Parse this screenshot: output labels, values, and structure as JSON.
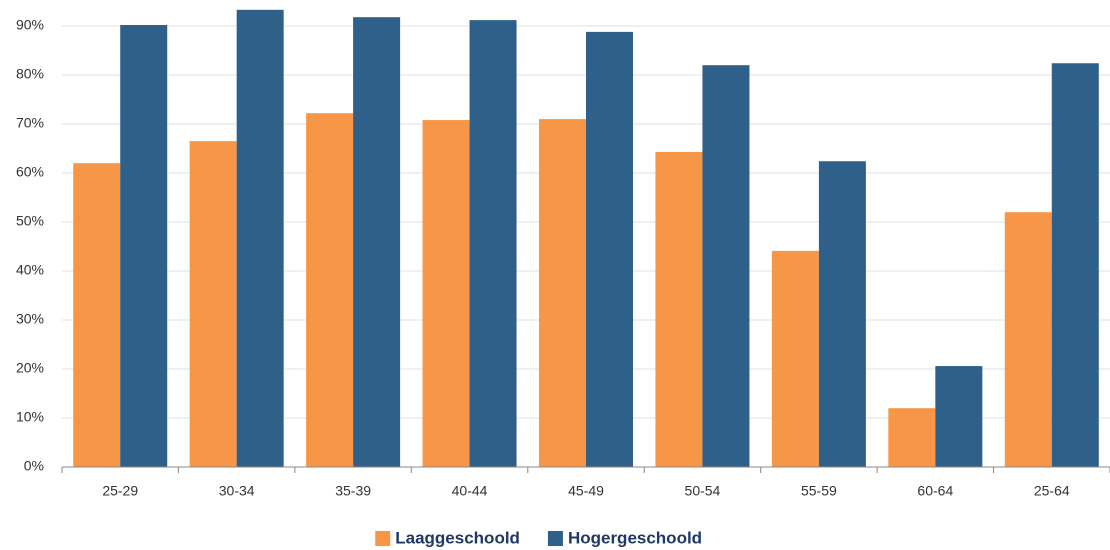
{
  "chart_data": {
    "type": "bar",
    "categories": [
      "25-29",
      "30-34",
      "35-39",
      "40-44",
      "45-49",
      "50-54",
      "55-59",
      "60-64",
      "25-64"
    ],
    "series": [
      {
        "name": "Laaggeschoold",
        "color": "#f79646",
        "values": [
          62.0,
          66.5,
          72.2,
          70.8,
          71.0,
          64.3,
          44.1,
          12.0,
          52.0
        ]
      },
      {
        "name": "Hogergeschoold",
        "color": "#2e6089",
        "values": [
          90.2,
          93.3,
          91.8,
          91.2,
          88.8,
          82.0,
          62.4,
          20.6,
          82.4
        ]
      }
    ],
    "ylim": [
      0,
      94
    ],
    "yticks": [
      {
        "value": 0,
        "label": "0%"
      },
      {
        "value": 10,
        "label": "10%"
      },
      {
        "value": 20,
        "label": "20%"
      },
      {
        "value": 30,
        "label": "30%"
      },
      {
        "value": 40,
        "label": "40%"
      },
      {
        "value": 50,
        "label": "50%"
      },
      {
        "value": 60,
        "label": "60%"
      },
      {
        "value": 70,
        "label": "70%"
      },
      {
        "value": 80,
        "label": "80%"
      },
      {
        "value": 90,
        "label": "90%"
      }
    ],
    "grid": true,
    "legend": "bottom"
  }
}
